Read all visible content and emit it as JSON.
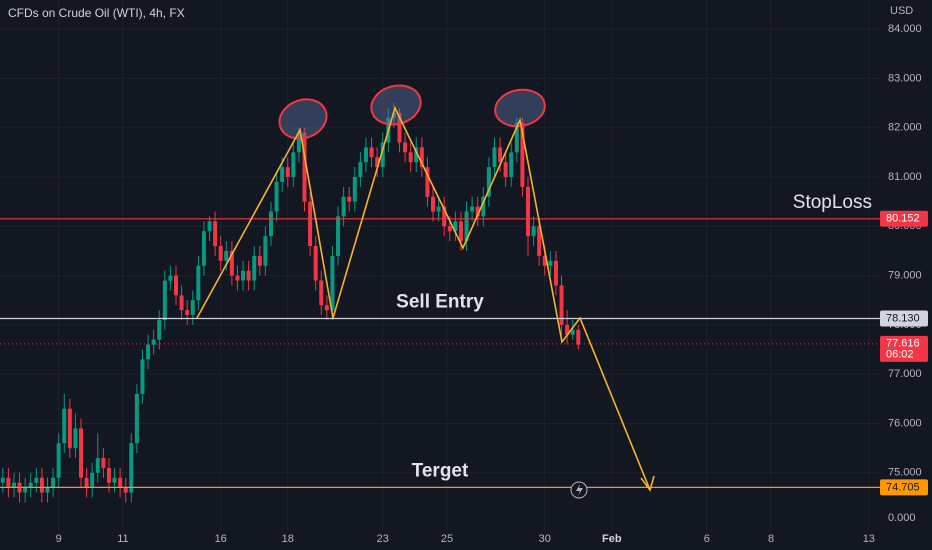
{
  "chart_data": {
    "type": "candlestick",
    "title": "CFDs on Crude Oil (WTI), 4h, FX",
    "currency": "USD",
    "open": [
      74.8,
      74.9,
      74.7,
      74.8,
      74.6,
      74.7,
      74.8,
      74.9,
      74.6,
      74.7,
      74.9,
      75.6,
      76.3,
      75.5,
      75.9,
      74.9,
      74.7,
      75.0,
      75.3,
      75.1,
      74.8,
      74.9,
      74.7,
      74.6,
      75.6,
      76.6,
      77.3,
      77.6,
      77.7,
      78.1,
      78.9,
      79.0,
      78.6,
      78.3,
      78.2,
      78.5,
      79.2,
      79.9,
      80.1,
      79.6,
      79.3,
      79.5,
      79.0,
      78.9,
      79.1,
      78.9,
      79.4,
      79.2,
      79.8,
      80.3,
      80.9,
      81.2,
      81.0,
      81.5,
      81.9,
      80.5,
      79.6,
      78.9,
      78.4,
      78.3,
      79.4,
      80.2,
      80.6,
      80.5,
      81.0,
      81.3,
      81.6,
      81.4,
      81.2,
      81.7,
      82.2,
      82.3,
      81.7,
      81.5,
      81.3,
      81.6,
      81.2,
      80.6,
      80.3,
      80.4,
      80.0,
      79.9,
      80.1,
      79.7,
      80.3,
      80.4,
      80.2,
      80.6,
      81.2,
      81.6,
      81.3,
      81.0,
      81.5,
      82.1,
      80.8,
      79.8,
      80.0,
      79.4,
      79.2,
      79.3,
      78.8,
      78.0,
      77.8,
      77.9
    ],
    "high": [
      75.1,
      75.1,
      75.0,
      75.0,
      74.9,
      75.0,
      75.1,
      75.1,
      74.9,
      75.1,
      75.8,
      76.6,
      76.5,
      76.2,
      76.1,
      75.1,
      75.2,
      75.8,
      75.5,
      75.3,
      75.1,
      75.1,
      74.9,
      75.8,
      76.8,
      77.5,
      77.8,
      77.9,
      78.3,
      79.1,
      79.2,
      79.2,
      78.8,
      78.5,
      78.7,
      79.4,
      80.1,
      80.2,
      80.3,
      79.8,
      79.7,
      79.7,
      79.2,
      79.3,
      79.3,
      79.6,
      79.6,
      80.0,
      80.5,
      81.1,
      81.4,
      81.4,
      81.7,
      82.0,
      82.0,
      80.7,
      79.8,
      79.1,
      78.6,
      79.6,
      80.4,
      80.8,
      80.8,
      81.2,
      81.5,
      81.8,
      81.8,
      81.6,
      81.9,
      82.4,
      82.5,
      82.4,
      81.9,
      81.7,
      81.8,
      81.8,
      81.4,
      80.8,
      80.6,
      80.6,
      80.2,
      80.3,
      80.3,
      80.5,
      80.6,
      80.6,
      80.8,
      81.4,
      81.8,
      81.8,
      81.5,
      81.7,
      82.2,
      82.2,
      81.0,
      80.2,
      80.1,
      79.6,
      79.5,
      79.5,
      79.0,
      78.3,
      78.1,
      78.0
    ],
    "low": [
      74.6,
      74.5,
      74.5,
      74.4,
      74.4,
      74.5,
      74.6,
      74.4,
      74.4,
      74.5,
      74.7,
      75.4,
      75.3,
      75.3,
      74.7,
      74.5,
      74.5,
      74.8,
      74.9,
      74.6,
      74.6,
      74.5,
      74.4,
      74.4,
      75.4,
      76.4,
      77.1,
      77.4,
      77.5,
      77.9,
      78.7,
      78.4,
      78.1,
      78.0,
      78.0,
      78.3,
      79.0,
      79.7,
      79.4,
      79.1,
      79.1,
      78.8,
      78.7,
      78.7,
      78.7,
      78.7,
      79.0,
      79.0,
      79.6,
      80.1,
      80.7,
      80.8,
      80.8,
      81.3,
      80.3,
      79.4,
      78.7,
      78.2,
      78.1,
      78.1,
      79.2,
      80.0,
      80.3,
      80.3,
      80.8,
      81.1,
      81.2,
      81.0,
      81.0,
      81.5,
      82.0,
      81.5,
      81.3,
      81.1,
      81.1,
      81.0,
      80.4,
      80.1,
      80.1,
      79.8,
      79.7,
      79.7,
      79.5,
      79.5,
      80.1,
      80.0,
      80.0,
      80.4,
      81.0,
      81.1,
      80.8,
      80.8,
      81.3,
      80.6,
      79.4,
      79.6,
      79.2,
      79.0,
      79.0,
      78.6,
      77.8,
      77.6,
      77.7,
      77.5
    ],
    "close": [
      74.9,
      74.7,
      74.8,
      74.6,
      74.7,
      74.8,
      74.9,
      74.6,
      74.7,
      74.9,
      75.6,
      76.3,
      75.5,
      75.9,
      74.9,
      74.7,
      75.0,
      75.3,
      75.1,
      74.8,
      74.9,
      74.7,
      74.6,
      75.6,
      76.6,
      77.3,
      77.6,
      77.7,
      78.1,
      78.9,
      79.0,
      78.6,
      78.3,
      78.2,
      78.5,
      79.2,
      79.9,
      80.1,
      79.6,
      79.3,
      79.5,
      79.0,
      78.9,
      79.1,
      78.9,
      79.4,
      79.2,
      79.8,
      80.3,
      80.9,
      81.2,
      81.0,
      81.5,
      81.9,
      80.5,
      79.6,
      78.9,
      78.4,
      78.3,
      79.4,
      80.2,
      80.6,
      80.5,
      81.0,
      81.3,
      81.6,
      81.4,
      81.2,
      81.7,
      82.2,
      82.3,
      81.7,
      81.5,
      81.3,
      81.6,
      81.2,
      80.6,
      80.3,
      80.4,
      80.0,
      79.9,
      80.1,
      79.7,
      80.3,
      80.4,
      80.2,
      80.6,
      81.2,
      81.6,
      81.3,
      81.0,
      81.5,
      82.1,
      80.8,
      79.8,
      80.0,
      79.4,
      79.2,
      79.3,
      78.8,
      78.0,
      77.8,
      77.9,
      77.6
    ],
    "up_color": "#089981",
    "down_color": "#f23645",
    "ylim": [
      73.84,
      84.59
    ],
    "yticks": [
      {
        "value": 84,
        "label": "84.000"
      },
      {
        "value": 83,
        "label": "83.000"
      },
      {
        "value": 82,
        "label": "82.000"
      },
      {
        "value": 81,
        "label": "81.000"
      },
      {
        "value": 80,
        "label": "80.000"
      },
      {
        "value": 79,
        "label": "79.000"
      },
      {
        "value": 78,
        "label": "78.000"
      },
      {
        "value": 77,
        "label": "77.000"
      },
      {
        "value": 76,
        "label": "76.000"
      },
      {
        "value": 75,
        "label": "75.000"
      }
    ],
    "xlim": [
      -0.5,
      157
    ],
    "xticks": [
      {
        "value": 10,
        "label": "9"
      },
      {
        "value": 21.5,
        "label": "11"
      },
      {
        "value": 39,
        "label": "16"
      },
      {
        "value": 51,
        "label": "18"
      },
      {
        "value": 68,
        "label": "23"
      },
      {
        "value": 79.5,
        "label": "25"
      },
      {
        "value": 97,
        "label": "30"
      },
      {
        "value": 109,
        "label": "Feb"
      },
      {
        "value": 126,
        "label": "6"
      },
      {
        "value": 137.5,
        "label": "8"
      },
      {
        "value": 155,
        "label": "13"
      }
    ],
    "grid": true,
    "levels": [
      {
        "name": "StopLoss",
        "value": 80.152,
        "color": "#f23645"
      },
      {
        "name": "Sell Entry",
        "value": 78.13,
        "value_label": "78.130",
        "color": "#d1d4dc"
      },
      {
        "name": "Terget",
        "value": 74.705,
        "color": "#ff9800"
      }
    ],
    "last_price": {
      "value": 77.616,
      "countdown": "06:02",
      "color": "#f23645"
    },
    "volume_axis_label": "0.000"
  }
}
